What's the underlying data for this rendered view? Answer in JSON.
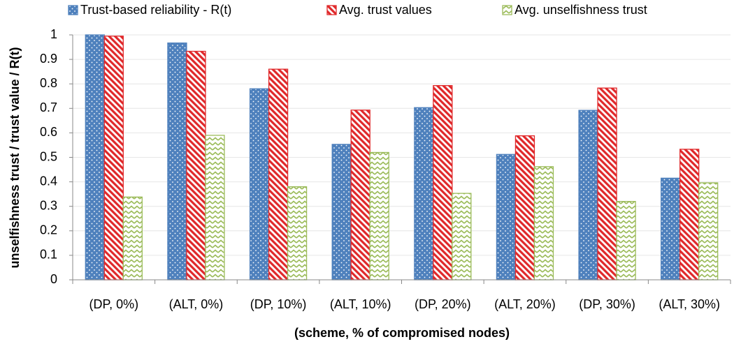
{
  "chart_data": {
    "type": "bar",
    "x_label": "(scheme, % of compromised nodes)",
    "y_label": "unselfishness trust / trust value / R(t)",
    "categories": [
      "(DP, 0%)",
      "(ALT, 0%)",
      "(DP, 10%)",
      "(ALT, 10%)",
      "(DP, 20%)",
      "(ALT, 20%)",
      "(DP, 30%)",
      "(ALT, 30%)"
    ],
    "series": [
      {
        "name": "Trust-based reliability - R(t)",
        "color": "#4f81bd",
        "pattern": "dots",
        "values": [
          1.0,
          0.967,
          0.78,
          0.553,
          0.703,
          0.512,
          0.692,
          0.415
        ]
      },
      {
        "name": "Avg. trust values",
        "color": "#e0282a",
        "pattern": "stripes",
        "values": [
          0.995,
          0.933,
          0.86,
          0.693,
          0.793,
          0.588,
          0.783,
          0.533
        ]
      },
      {
        "name": "Avg. unselfishness trust",
        "color": "#9bbb59",
        "pattern": "zigzag",
        "values": [
          0.338,
          0.59,
          0.38,
          0.52,
          0.353,
          0.462,
          0.32,
          0.396
        ]
      }
    ],
    "ylim": [
      0,
      1
    ],
    "yticks": [
      0,
      0.1,
      0.2,
      0.3,
      0.4,
      0.5,
      0.6,
      0.7,
      0.8,
      0.9,
      1
    ],
    "grid": true,
    "legend": "top"
  }
}
